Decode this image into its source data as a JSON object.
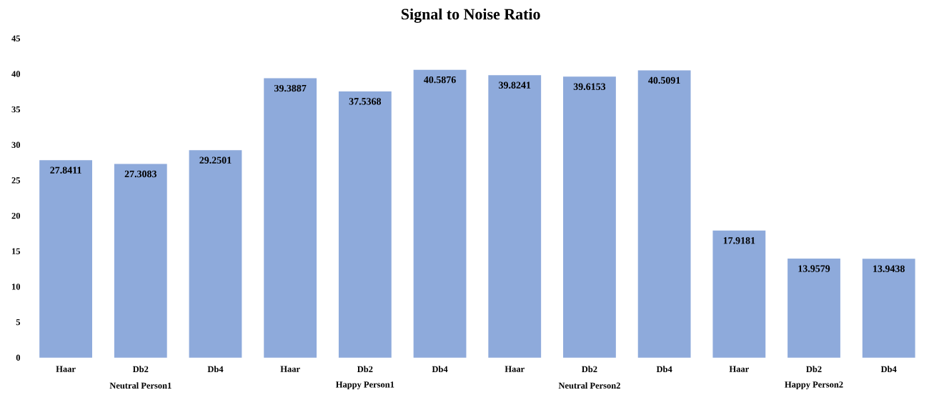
{
  "chart_data": {
    "type": "bar",
    "title": "Signal to Noise Ratio",
    "categories": [
      "Haar",
      "Db2",
      "Db4",
      "Haar",
      "Db2",
      "Db4",
      "Haar",
      "Db2",
      "Db4",
      "Haar",
      "Db2",
      "Db4"
    ],
    "values": [
      27.8411,
      27.3083,
      29.2501,
      39.3887,
      37.5368,
      40.5876,
      39.8241,
      39.6153,
      40.5091,
      17.9181,
      13.9579,
      13.9438
    ],
    "color": "#8eaadb",
    "ylim": [
      0,
      45
    ],
    "yticks": [
      0,
      5,
      10,
      15,
      20,
      25,
      30,
      35,
      40,
      45
    ],
    "data_labels": true,
    "annotations": [
      "Neutral Person1",
      "Happy Person1",
      "Neutral Person2",
      "Happy Person2"
    ]
  }
}
